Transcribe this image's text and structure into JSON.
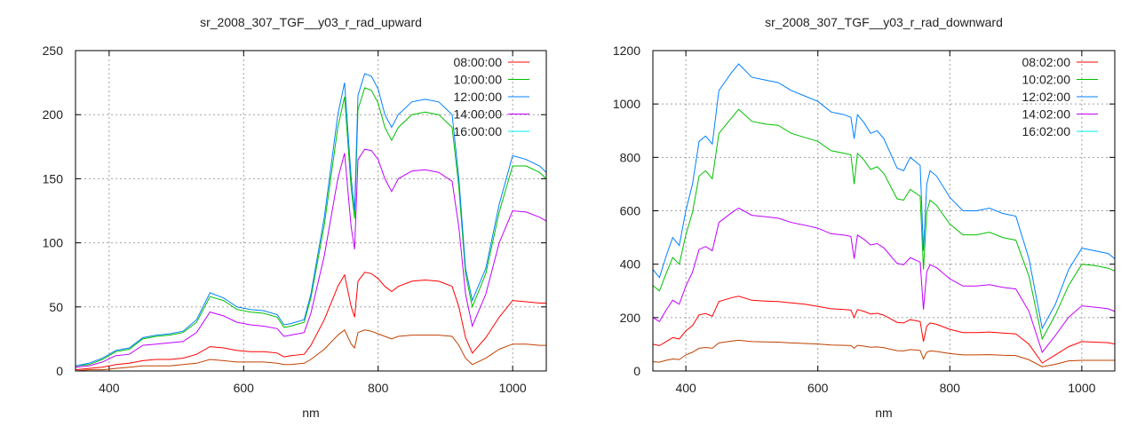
{
  "chart_data": [
    {
      "type": "line",
      "title": "sr_2008_307_TGF__y03_r_rad_upward",
      "xlabel": "nm",
      "ylabel": "",
      "xlim": [
        350,
        1050
      ],
      "ylim": [
        0,
        250
      ],
      "xticks": [
        400,
        600,
        800,
        1000
      ],
      "yticks": [
        0,
        50,
        100,
        150,
        200,
        250
      ],
      "grid": true,
      "legend_position": "top-right",
      "x": [
        350,
        370,
        390,
        410,
        430,
        450,
        470,
        490,
        510,
        530,
        550,
        570,
        590,
        610,
        630,
        650,
        660,
        670,
        690,
        700,
        720,
        740,
        750,
        760,
        765,
        770,
        780,
        790,
        800,
        810,
        820,
        830,
        850,
        870,
        890,
        910,
        920,
        930,
        940,
        960,
        980,
        1000,
        1020,
        1040,
        1050
      ],
      "series": [
        {
          "name": "08:00:00",
          "color": "#ff0000",
          "legend_color": "#ff0000",
          "values": [
            1,
            2,
            3,
            5,
            6,
            8,
            9,
            9,
            10,
            13,
            19,
            18,
            16,
            15,
            15,
            14,
            11,
            12,
            13,
            20,
            40,
            66,
            75,
            50,
            42,
            70,
            77,
            76,
            72,
            66,
            62,
            66,
            70,
            71,
            70,
            66,
            50,
            26,
            14,
            26,
            42,
            55,
            54,
            53,
            53
          ]
        },
        {
          "name": "10:00:00",
          "color": "#00c000",
          "legend_color": "#00c000",
          "values": [
            4,
            5,
            9,
            15,
            17,
            25,
            27,
            28,
            30,
            38,
            58,
            55,
            48,
            46,
            45,
            42,
            34,
            35,
            38,
            57,
            114,
            190,
            214,
            142,
            119,
            204,
            221,
            219,
            209,
            190,
            180,
            190,
            200,
            202,
            200,
            190,
            143,
            76,
            50,
            76,
            124,
            160,
            160,
            155,
            150
          ]
        },
        {
          "name": "12:00:00",
          "color": "#0080ff",
          "legend_color": "#0080ff",
          "values": [
            4,
            6,
            10,
            16,
            18,
            26,
            28,
            29,
            31,
            40,
            61,
            57,
            50,
            48,
            47,
            44,
            36,
            37,
            40,
            60,
            120,
            200,
            225,
            150,
            125,
            215,
            232,
            230,
            220,
            200,
            190,
            200,
            210,
            212,
            210,
            200,
            150,
            80,
            55,
            80,
            130,
            168,
            165,
            160,
            155
          ]
        },
        {
          "name": "14:00:00",
          "color": "#c000ff",
          "legend_color": "#c000ff",
          "values": [
            3,
            4,
            7,
            12,
            13,
            20,
            21,
            22,
            23,
            30,
            46,
            43,
            38,
            36,
            35,
            33,
            27,
            28,
            30,
            45,
            90,
            150,
            170,
            112,
            95,
            165,
            173,
            172,
            165,
            150,
            140,
            150,
            156,
            157,
            155,
            148,
            112,
            60,
            35,
            60,
            100,
            125,
            124,
            120,
            117
          ]
        },
        {
          "name": "16:00:00",
          "color": "#c04000",
          "legend_color": "#00eeee",
          "values": [
            0,
            1,
            1,
            2,
            3,
            4,
            4,
            4,
            5,
            6,
            9,
            8,
            7,
            7,
            7,
            6,
            5,
            5,
            6,
            9,
            17,
            28,
            32,
            21,
            18,
            30,
            32,
            31,
            29,
            27,
            25,
            27,
            28,
            28,
            28,
            27,
            20,
            10,
            5,
            10,
            17,
            21,
            21,
            20,
            20
          ]
        }
      ]
    },
    {
      "type": "line",
      "title": "sr_2008_307_TGF__y03_r_rad_downward",
      "xlabel": "nm",
      "ylabel": "",
      "xlim": [
        350,
        1050
      ],
      "ylim": [
        0,
        1200
      ],
      "xticks": [
        400,
        600,
        800,
        1000
      ],
      "yticks": [
        0,
        200,
        400,
        600,
        800,
        1000,
        1200
      ],
      "grid": true,
      "legend_position": "top-right",
      "x": [
        350,
        360,
        370,
        380,
        390,
        400,
        410,
        420,
        430,
        440,
        450,
        470,
        480,
        500,
        520,
        540,
        560,
        580,
        600,
        620,
        640,
        650,
        655,
        660,
        670,
        680,
        690,
        700,
        720,
        730,
        740,
        755,
        760,
        765,
        770,
        780,
        800,
        820,
        840,
        860,
        880,
        900,
        920,
        940,
        960,
        980,
        1000,
        1020,
        1040,
        1050
      ],
      "series": [
        {
          "name": "08:02:00",
          "color": "#ff0000",
          "legend_color": "#ff0000",
          "values": [
            100,
            95,
            110,
            125,
            120,
            150,
            170,
            210,
            215,
            205,
            260,
            275,
            280,
            265,
            262,
            260,
            255,
            250,
            242,
            233,
            230,
            228,
            200,
            230,
            223,
            213,
            216,
            209,
            182,
            180,
            192,
            185,
            110,
            168,
            180,
            175,
            156,
            144,
            144,
            146,
            142,
            139,
            100,
            30,
            60,
            91,
            110,
            108,
            106,
            101
          ]
        },
        {
          "name": "10:02:00",
          "color": "#00c000",
          "legend_color": "#00c000",
          "values": [
            320,
            300,
            365,
            425,
            400,
            510,
            595,
            730,
            750,
            720,
            890,
            950,
            980,
            935,
            925,
            920,
            890,
            875,
            860,
            825,
            815,
            810,
            700,
            815,
            790,
            755,
            765,
            740,
            645,
            640,
            680,
            655,
            380,
            595,
            640,
            620,
            550,
            510,
            510,
            520,
            500,
            490,
            355,
            120,
            210,
            320,
            400,
            395,
            385,
            375
          ]
        },
        {
          "name": "12:02:00",
          "color": "#0080ff",
          "legend_color": "#0080ff",
          "values": [
            380,
            350,
            430,
            500,
            470,
            600,
            700,
            860,
            880,
            850,
            1050,
            1120,
            1150,
            1100,
            1090,
            1080,
            1050,
            1030,
            1010,
            970,
            960,
            950,
            870,
            960,
            930,
            890,
            900,
            870,
            760,
            750,
            800,
            770,
            450,
            700,
            750,
            730,
            650,
            600,
            600,
            610,
            590,
            580,
            420,
            160,
            250,
            380,
            460,
            450,
            440,
            420
          ]
        },
        {
          "name": "14:02:00",
          "color": "#c000ff",
          "legend_color": "#c000ff",
          "values": [
            200,
            185,
            228,
            265,
            250,
            318,
            370,
            455,
            466,
            450,
            556,
            594,
            610,
            583,
            578,
            572,
            556,
            546,
            535,
            514,
            509,
            504,
            420,
            509,
            493,
            472,
            477,
            461,
            403,
            398,
            424,
            408,
            230,
            371,
            398,
            387,
            345,
            318,
            318,
            323,
            313,
            307,
            223,
            70,
            133,
            201,
            244,
            239,
            233,
            223
          ]
        },
        {
          "name": "16:02:00",
          "color": "#c04000",
          "legend_color": "#00eeee",
          "values": [
            35,
            33,
            40,
            45,
            43,
            60,
            70,
            85,
            88,
            85,
            105,
            112,
            115,
            110,
            109,
            108,
            105,
            103,
            101,
            97,
            96,
            95,
            85,
            96,
            93,
            89,
            90,
            87,
            76,
            75,
            80,
            77,
            45,
            70,
            75,
            73,
            65,
            60,
            60,
            61,
            59,
            58,
            42,
            16,
            25,
            38,
            40,
            40,
            40,
            40
          ]
        }
      ]
    }
  ]
}
